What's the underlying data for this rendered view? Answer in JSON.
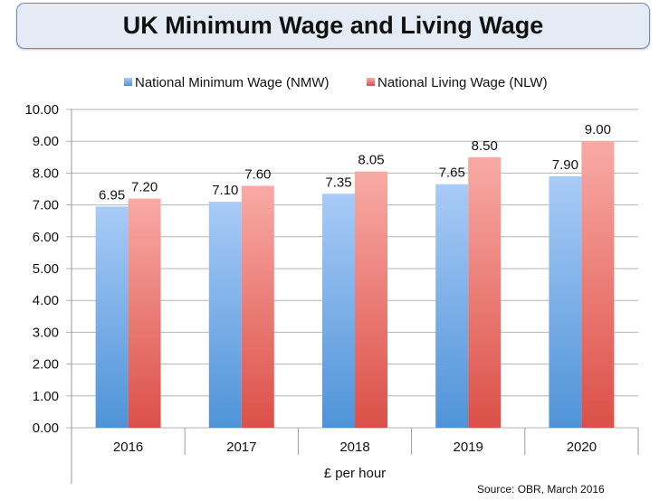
{
  "chart_data": {
    "type": "bar",
    "title": "UK Minimum Wage and Living Wage",
    "categories": [
      "2016",
      "2017",
      "2018",
      "2019",
      "2020"
    ],
    "series": [
      {
        "name": "National Minimum Wage (NMW)",
        "values": [
          6.95,
          7.1,
          7.35,
          7.65,
          7.9
        ],
        "labels": [
          "6.95",
          "7.10",
          "7.35",
          "7.65",
          "7.90"
        ],
        "color_top": "#a9cbf7",
        "color_bottom": "#4f93d8"
      },
      {
        "name": "National Living Wage (NLW)",
        "values": [
          7.2,
          7.6,
          8.05,
          8.5,
          9.0
        ],
        "labels": [
          "7.20",
          "7.60",
          "8.05",
          "8.50",
          "9.00"
        ],
        "color_top": "#f9aaa5",
        "color_bottom": "#db5048"
      }
    ],
    "xlabel": "£ per hour",
    "ylabel": "",
    "ylim": [
      0,
      10
    ],
    "yticks": [
      "0.00",
      "1.00",
      "2.00",
      "3.00",
      "4.00",
      "5.00",
      "6.00",
      "7.00",
      "8.00",
      "9.00",
      "10.00"
    ],
    "grid": true,
    "legend": "top",
    "source": "Source: OBR, March 2016"
  }
}
